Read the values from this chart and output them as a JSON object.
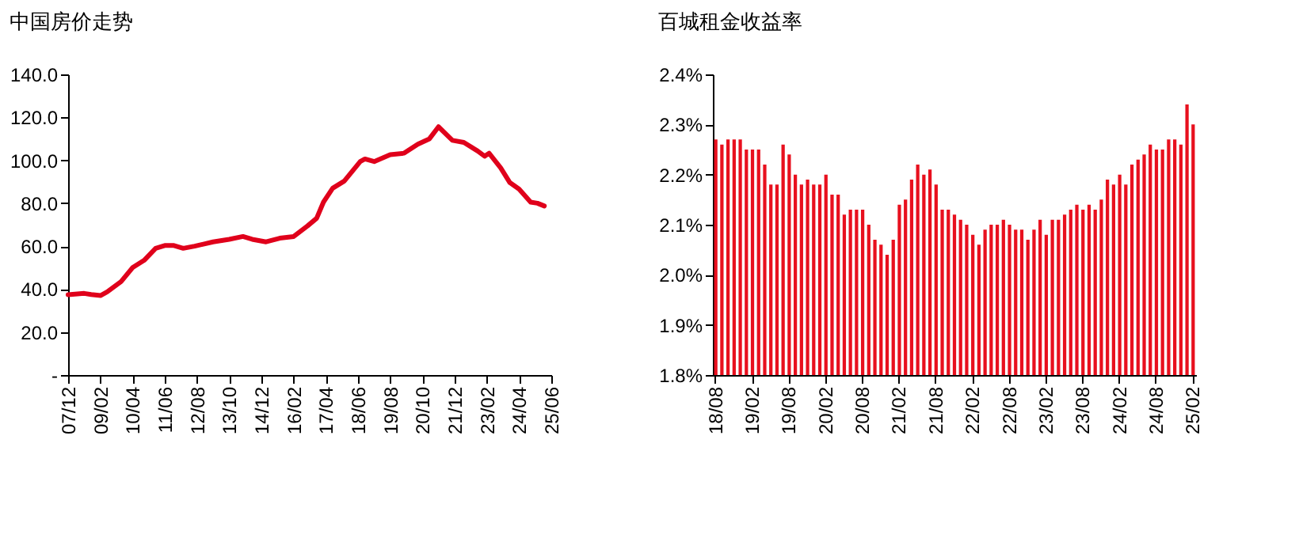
{
  "chart_data": [
    {
      "type": "line",
      "title": "中国房价走势",
      "color": "#e0001b",
      "x": [
        "2007-12",
        "2008-07",
        "2008-10",
        "2009-02",
        "2009-05",
        "2009-11",
        "2010-04",
        "2010-09",
        "2011-02",
        "2011-06",
        "2011-10",
        "2012-02",
        "2012-07",
        "2013-03",
        "2013-10",
        "2014-04",
        "2014-08",
        "2015-02",
        "2015-08",
        "2016-02",
        "2016-08",
        "2016-12",
        "2017-03",
        "2017-07",
        "2017-12",
        "2018-07",
        "2018-09",
        "2019-01",
        "2019-08",
        "2020-02",
        "2020-08",
        "2021-01",
        "2021-05",
        "2021-11",
        "2022-04",
        "2022-10",
        "2023-01",
        "2023-03",
        "2023-08",
        "2023-12",
        "2024-04",
        "2024-09",
        "2024-12",
        "2025-03"
      ],
      "values": [
        37.4,
        38,
        37.5,
        37,
        38.7,
        43.5,
        50,
        53.4,
        59,
        60.3,
        60.3,
        59,
        60,
        62,
        63.2,
        64.5,
        63.2,
        62,
        63.7,
        64.5,
        69.4,
        73,
        80.5,
        87,
        90.3,
        99.4,
        100.6,
        99.4,
        102.6,
        103.3,
        107.5,
        110,
        115.6,
        109.3,
        108.3,
        104.3,
        101.9,
        103.3,
        96.5,
        89.6,
        86.6,
        80.5,
        80,
        78.7
      ],
      "xlim": [
        "2007-12",
        "2025-06"
      ],
      "xticks": [
        {
          "value": "2007-12",
          "label": "07/12"
        },
        {
          "value": "2009-02",
          "label": "09/02"
        },
        {
          "value": "2010-04",
          "label": "10/04"
        },
        {
          "value": "2011-06",
          "label": "11/06"
        },
        {
          "value": "2012-08",
          "label": "12/08"
        },
        {
          "value": "2013-10",
          "label": "13/10"
        },
        {
          "value": "2014-12",
          "label": "14/12"
        },
        {
          "value": "2016-02",
          "label": "16/02"
        },
        {
          "value": "2017-04",
          "label": "17/04"
        },
        {
          "value": "2018-06",
          "label": "18/06"
        },
        {
          "value": "2019-08",
          "label": "19/08"
        },
        {
          "value": "2020-10",
          "label": "20/10"
        },
        {
          "value": "2021-12",
          "label": "21/12"
        },
        {
          "value": "2023-02",
          "label": "23/02"
        },
        {
          "value": "2024-04",
          "label": "24/04"
        },
        {
          "value": "2025-06",
          "label": "25/06"
        }
      ],
      "ylim": [
        0,
        140
      ],
      "yticks": [
        {
          "value": 0,
          "label": "-"
        },
        {
          "value": 20,
          "label": "20.0"
        },
        {
          "value": 40,
          "label": "40.0"
        },
        {
          "value": 60,
          "label": "60.0"
        },
        {
          "value": 80,
          "label": "80.0"
        },
        {
          "value": 100,
          "label": "100.0"
        },
        {
          "value": 120,
          "label": "120.0"
        },
        {
          "value": 140,
          "label": "140.0"
        }
      ]
    },
    {
      "type": "bar",
      "title": "百城租金收益率",
      "color": "#e8101e",
      "categories": [
        "18/08",
        null,
        null,
        null,
        null,
        null,
        "19/02",
        null,
        null,
        null,
        null,
        null,
        "19/08",
        null,
        null,
        null,
        null,
        null,
        "20/02",
        null,
        null,
        null,
        null,
        null,
        "20/08",
        null,
        null,
        null,
        null,
        null,
        "21/02",
        null,
        null,
        null,
        null,
        null,
        "21/08",
        null,
        null,
        null,
        null,
        null,
        "22/02",
        null,
        null,
        null,
        null,
        null,
        "22/08",
        null,
        null,
        null,
        null,
        null,
        "23/02",
        null,
        null,
        null,
        null,
        null,
        "23/08",
        null,
        null,
        null,
        null,
        null,
        "24/02",
        null,
        null,
        null,
        null,
        null,
        "24/08",
        null,
        null,
        null,
        null,
        null,
        "25/02"
      ],
      "values": [
        2.27,
        2.26,
        2.27,
        2.27,
        2.27,
        2.25,
        2.25,
        2.25,
        2.22,
        2.18,
        2.18,
        2.26,
        2.24,
        2.2,
        2.18,
        2.19,
        2.18,
        2.18,
        2.2,
        2.16,
        2.16,
        2.12,
        2.13,
        2.13,
        2.13,
        2.1,
        2.07,
        2.06,
        2.04,
        2.07,
        2.14,
        2.15,
        2.19,
        2.22,
        2.2,
        2.21,
        2.18,
        2.13,
        2.13,
        2.12,
        2.11,
        2.1,
        2.08,
        2.06,
        2.09,
        2.1,
        2.1,
        2.11,
        2.1,
        2.09,
        2.09,
        2.07,
        2.09,
        2.11,
        2.08,
        2.11,
        2.11,
        2.12,
        2.13,
        2.14,
        2.13,
        2.14,
        2.13,
        2.15,
        2.19,
        2.18,
        2.2,
        2.18,
        2.22,
        2.23,
        2.24,
        2.26,
        2.25,
        2.25,
        2.27,
        2.27,
        2.26,
        2.34,
        2.3
      ],
      "ylim": [
        1.8,
        2.4
      ],
      "yticks": [
        {
          "value": 1.8,
          "label": "1.8%"
        },
        {
          "value": 1.9,
          "label": "1.9%"
        },
        {
          "value": 2.0,
          "label": "2.0%"
        },
        {
          "value": 2.1,
          "label": "2.1%"
        },
        {
          "value": 2.2,
          "label": "2.2%"
        },
        {
          "value": 2.3,
          "label": "2.3%"
        },
        {
          "value": 2.4,
          "label": "2.4%"
        }
      ]
    }
  ]
}
